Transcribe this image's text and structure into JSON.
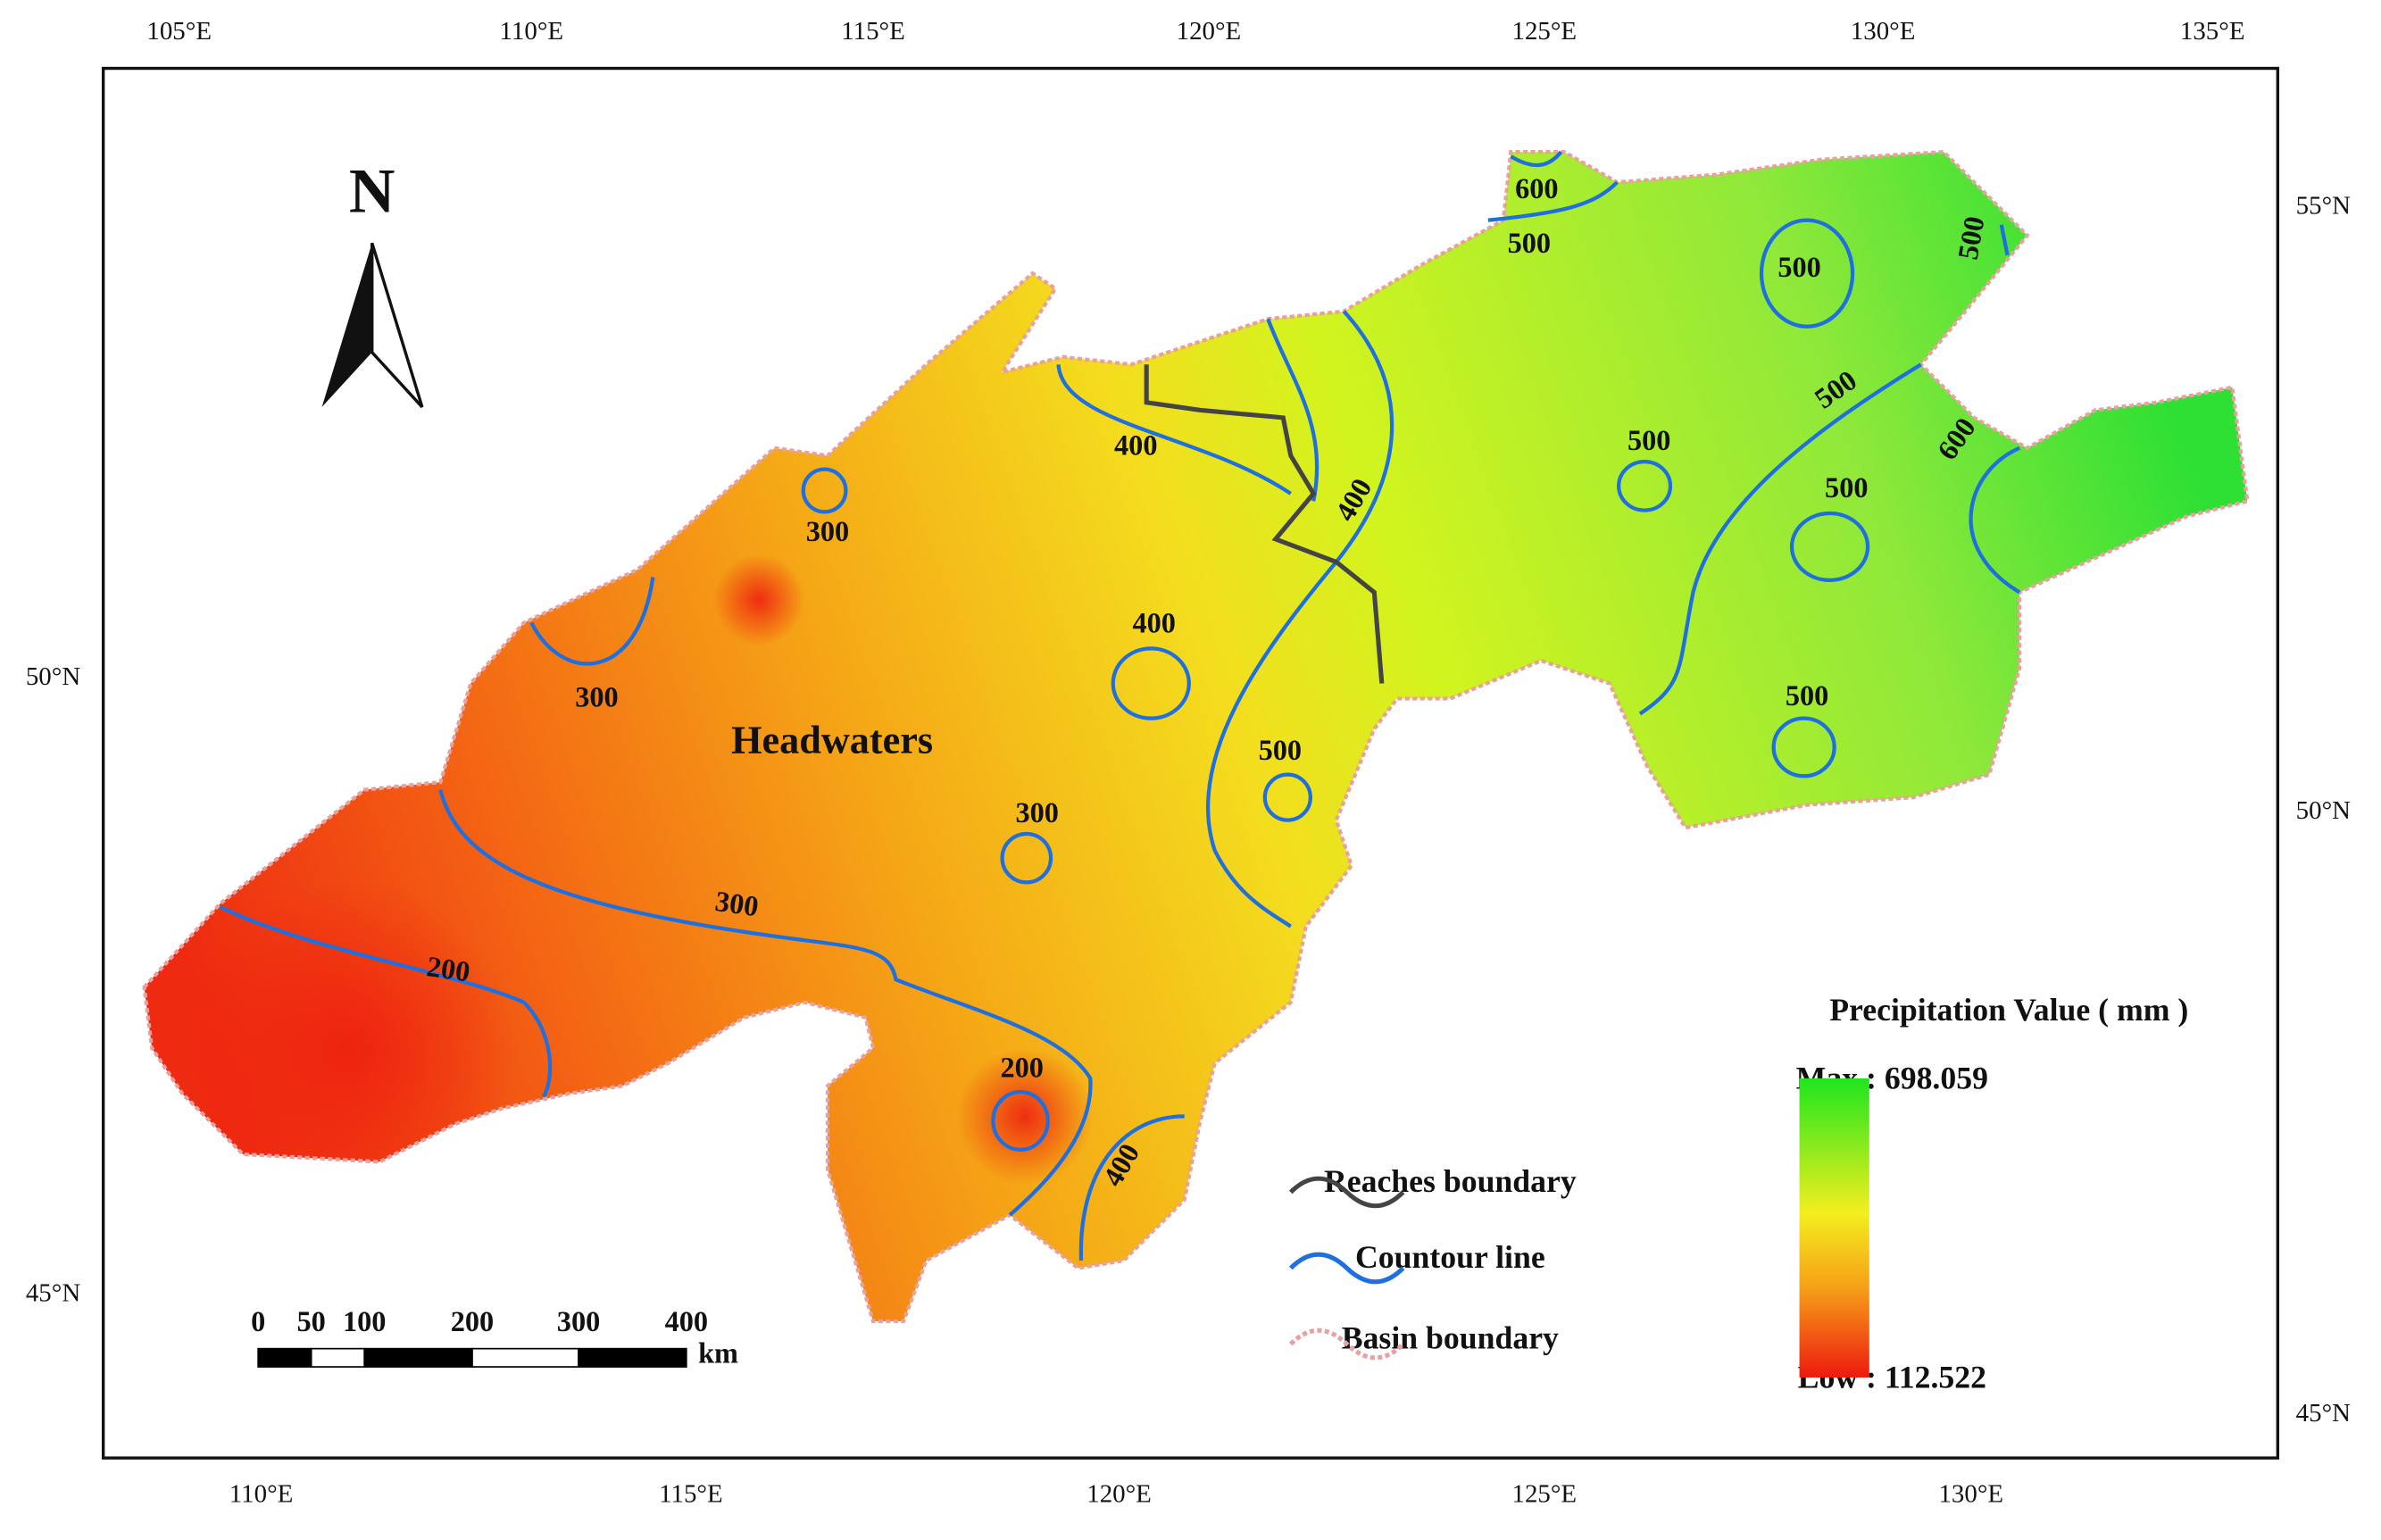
{
  "frame": {
    "top_labels": [
      "105°E",
      "110°E",
      "115°E",
      "120°E",
      "125°E",
      "130°E",
      "135°E"
    ],
    "bottom_labels": [
      "110°E",
      "115°E",
      "120°E",
      "125°E",
      "130°E"
    ],
    "left_labels": [
      "50°N",
      "45°N"
    ],
    "right_labels": [
      "55°N",
      "50°N",
      "45°N"
    ]
  },
  "map": {
    "region_label": "Headwaters",
    "north": "N",
    "contour_labels": [
      "600",
      "500",
      "500",
      "500",
      "500",
      "600",
      "500",
      "500",
      "500",
      "400",
      "400",
      "300",
      "400",
      "300",
      "500",
      "300",
      "300",
      "200",
      "200",
      "400"
    ]
  },
  "legend": {
    "items": [
      "Reaches boundary",
      "Countour line",
      "Basin boundary"
    ]
  },
  "colorbar": {
    "title": "Precipitation Value ( mm )",
    "max": "Max : 698.059",
    "min": "Low : 112.522"
  },
  "scale_bar": {
    "labels": [
      "0",
      "50",
      "100",
      "200",
      "300",
      "400"
    ],
    "unit": "km"
  }
}
